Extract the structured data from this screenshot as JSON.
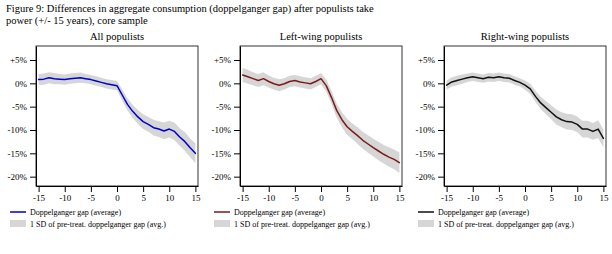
{
  "title": [
    "Figure 9:   Differences in aggregate consumption (doppelganger gap) after populists take",
    "power (+/- 15 years), core sample"
  ],
  "chart_data": [
    {
      "type": "line",
      "title": "All populists",
      "x": [
        -15,
        -14,
        -13,
        -12,
        -11,
        -10,
        -9,
        -8,
        -7,
        -6,
        -5,
        -4,
        -3,
        -2,
        -1,
        0,
        1,
        2,
        3,
        4,
        5,
        6,
        7,
        8,
        9,
        10,
        11,
        12,
        13,
        14,
        15
      ],
      "series": [
        {
          "name": "Doppelganger gap (average)",
          "type": "line",
          "color": "#0000cc",
          "values": [
            0.008,
            0.009,
            0.012,
            0.01,
            0.009,
            0.008,
            0.01,
            0.011,
            0.012,
            0.01,
            0.008,
            0.005,
            0.002,
            -0.001,
            -0.003,
            -0.005,
            -0.025,
            -0.045,
            -0.06,
            -0.072,
            -0.082,
            -0.088,
            -0.095,
            -0.098,
            -0.102,
            -0.098,
            -0.103,
            -0.115,
            -0.125,
            -0.138,
            -0.15
          ]
        },
        {
          "name": "1 SD of pre-treat. doppelganger gap (avg.)",
          "type": "band",
          "color": "#bbbbbb",
          "values": [
            0.008,
            0.009,
            0.012,
            0.01,
            0.009,
            0.008,
            0.01,
            0.011,
            0.012,
            0.01,
            0.008,
            0.005,
            0.002,
            -0.001,
            -0.003,
            -0.005,
            -0.025,
            -0.045,
            -0.06,
            -0.072,
            -0.082,
            -0.088,
            -0.095,
            -0.098,
            -0.102,
            -0.098,
            -0.103,
            -0.115,
            -0.125,
            -0.138,
            -0.15
          ],
          "error": [
            0.012,
            0.012,
            0.012,
            0.012,
            0.011,
            0.011,
            0.011,
            0.011,
            0.011,
            0.01,
            0.01,
            0.01,
            0.01,
            0.01,
            0.01,
            0.01,
            0.012,
            0.013,
            0.014,
            0.015,
            0.016,
            0.016,
            0.017,
            0.017,
            0.018,
            0.018,
            0.019,
            0.019,
            0.02,
            0.02,
            0.021
          ]
        }
      ],
      "xlim": [
        -15.5,
        15.5
      ],
      "xticks": [
        -15,
        -10,
        -5,
        0,
        5,
        10,
        15
      ],
      "ylim": [
        -0.22,
        0.08
      ],
      "yticks": [
        {
          "value": 0.05,
          "label": "+5%"
        },
        {
          "value": 0,
          "label": "0%"
        },
        {
          "value": -0.05,
          "label": "-5%"
        },
        {
          "value": -0.1,
          "label": "-10%"
        },
        {
          "value": -0.15,
          "label": "-15%"
        },
        {
          "value": -0.2,
          "label": "-20%"
        }
      ],
      "grid": false,
      "legend": "below"
    },
    {
      "type": "line",
      "title": "Left-wing populists",
      "x": [
        -15,
        -14,
        -13,
        -12,
        -11,
        -10,
        -9,
        -8,
        -7,
        -6,
        -5,
        -4,
        -3,
        -2,
        -1,
        0,
        1,
        2,
        3,
        4,
        5,
        6,
        7,
        8,
        9,
        10,
        11,
        12,
        13,
        14,
        15
      ],
      "series": [
        {
          "name": "Doppelganger gap (average)",
          "type": "line",
          "color": "#7b1a1a",
          "values": [
            0.018,
            0.014,
            0.01,
            0.006,
            0.01,
            0.004,
            -0.001,
            -0.004,
            -0.001,
            0.004,
            0.006,
            0.003,
            0.001,
            -0.001,
            0.004,
            0.01,
            -0.005,
            -0.03,
            -0.058,
            -0.078,
            -0.093,
            -0.103,
            -0.112,
            -0.122,
            -0.13,
            -0.138,
            -0.145,
            -0.152,
            -0.158,
            -0.163,
            -0.17
          ]
        },
        {
          "name": "1 SD of pre-treat. doppelganger gap (avg.)",
          "type": "band",
          "color": "#bbbbbb",
          "values": [
            0.018,
            0.014,
            0.01,
            0.006,
            0.01,
            0.004,
            -0.001,
            -0.004,
            -0.001,
            0.004,
            0.006,
            0.003,
            0.001,
            -0.001,
            0.004,
            0.01,
            -0.005,
            -0.03,
            -0.058,
            -0.078,
            -0.093,
            -0.103,
            -0.112,
            -0.122,
            -0.13,
            -0.138,
            -0.145,
            -0.152,
            -0.158,
            -0.163,
            -0.17
          ],
          "error": [
            0.015,
            0.015,
            0.014,
            0.014,
            0.014,
            0.013,
            0.013,
            0.013,
            0.012,
            0.012,
            0.012,
            0.012,
            0.012,
            0.012,
            0.012,
            0.012,
            0.013,
            0.014,
            0.015,
            0.016,
            0.017,
            0.017,
            0.018,
            0.018,
            0.019,
            0.019,
            0.02,
            0.02,
            0.021,
            0.021,
            0.022
          ]
        }
      ],
      "xlim": [
        -15.5,
        15.5
      ],
      "xticks": [
        -15,
        -10,
        -5,
        0,
        5,
        10,
        15
      ],
      "ylim": [
        -0.22,
        0.08
      ],
      "yticks": [
        {
          "value": 0.05,
          "label": "+5%"
        },
        {
          "value": 0,
          "label": "0%"
        },
        {
          "value": -0.05,
          "label": "-5%"
        },
        {
          "value": -0.1,
          "label": "-10%"
        },
        {
          "value": -0.15,
          "label": "-15%"
        },
        {
          "value": -0.2,
          "label": "-20%"
        }
      ],
      "grid": false,
      "legend": "below"
    },
    {
      "type": "line",
      "title": "Right-wing populists",
      "x": [
        -15,
        -14,
        -13,
        -12,
        -11,
        -10,
        -9,
        -8,
        -7,
        -6,
        -5,
        -4,
        -3,
        -2,
        -1,
        0,
        1,
        2,
        3,
        4,
        5,
        6,
        7,
        8,
        9,
        10,
        11,
        12,
        13,
        14,
        15
      ],
      "series": [
        {
          "name": "Doppelganger gap (average)",
          "type": "line",
          "color": "#111111",
          "values": [
            -0.004,
            0.003,
            0.006,
            0.009,
            0.012,
            0.014,
            0.012,
            0.01,
            0.013,
            0.012,
            0.014,
            0.012,
            0.011,
            0.006,
            0.002,
            -0.004,
            -0.012,
            -0.028,
            -0.042,
            -0.052,
            -0.062,
            -0.072,
            -0.078,
            -0.082,
            -0.083,
            -0.088,
            -0.098,
            -0.098,
            -0.103,
            -0.098,
            -0.118
          ]
        },
        {
          "name": "1 SD of pre-treat. doppelganger gap (avg.)",
          "type": "band",
          "color": "#bbbbbb",
          "values": [
            -0.004,
            0.003,
            0.006,
            0.009,
            0.012,
            0.014,
            0.012,
            0.01,
            0.013,
            0.012,
            0.014,
            0.012,
            0.011,
            0.006,
            0.002,
            -0.004,
            -0.012,
            -0.028,
            -0.042,
            -0.052,
            -0.062,
            -0.072,
            -0.078,
            -0.082,
            -0.083,
            -0.088,
            -0.098,
            -0.098,
            -0.103,
            -0.098,
            -0.118
          ],
          "error": [
            0.01,
            0.01,
            0.01,
            0.01,
            0.009,
            0.009,
            0.009,
            0.009,
            0.009,
            0.009,
            0.009,
            0.009,
            0.009,
            0.009,
            0.009,
            0.01,
            0.011,
            0.012,
            0.013,
            0.014,
            0.015,
            0.016,
            0.016,
            0.017,
            0.017,
            0.017,
            0.018,
            0.018,
            0.018,
            0.019,
            0.019
          ]
        }
      ],
      "xlim": [
        -15.5,
        15.5
      ],
      "xticks": [
        -15,
        -10,
        -5,
        0,
        5,
        10,
        15
      ],
      "ylim": [
        -0.22,
        0.08
      ],
      "yticks": [
        {
          "value": 0.05,
          "label": "+5%"
        },
        {
          "value": 0,
          "label": "0%"
        },
        {
          "value": -0.05,
          "label": "-5%"
        },
        {
          "value": -0.1,
          "label": "-10%"
        },
        {
          "value": -0.15,
          "label": "-15%"
        },
        {
          "value": -0.2,
          "label": "-20%"
        }
      ],
      "grid": false,
      "legend": "below"
    }
  ]
}
